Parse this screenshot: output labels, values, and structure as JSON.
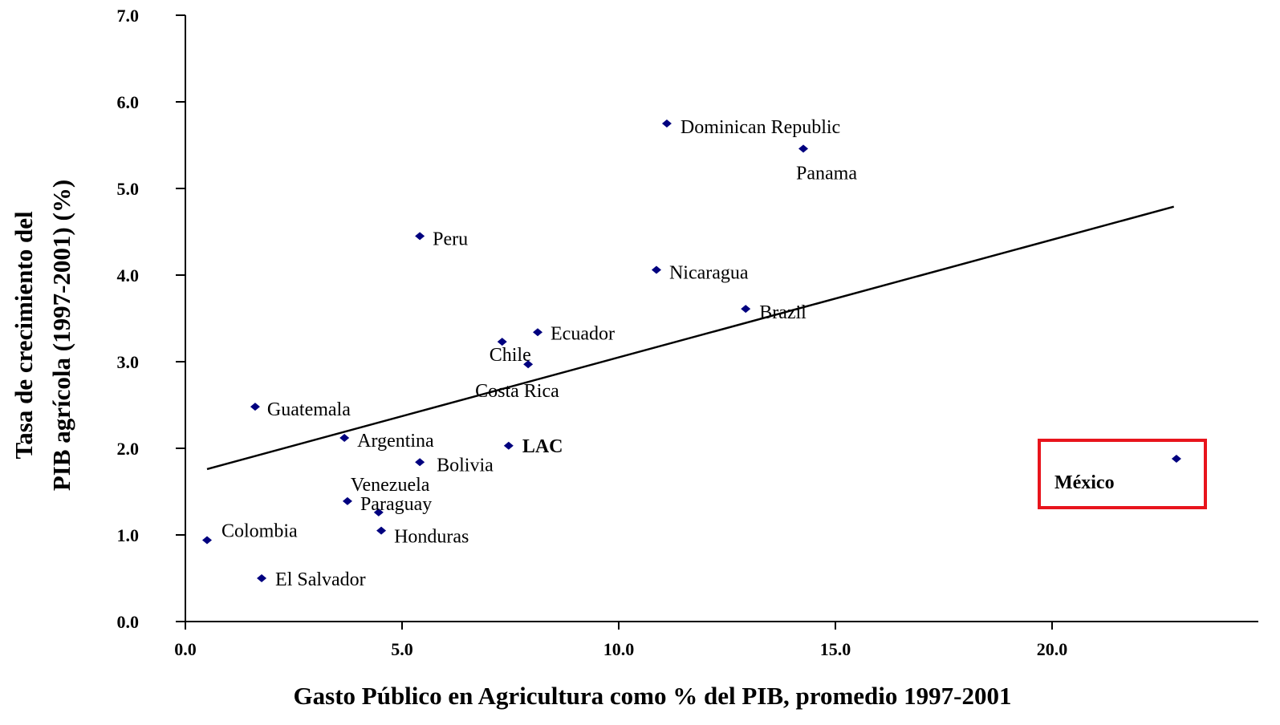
{
  "chart_data": {
    "type": "scatter",
    "xlabel": "Gasto Público en Agricultura como % del PIB, promedio 1997-2001",
    "ylabel": [
      "Tasa de crecimiento del",
      "PIB agrícola (1997-2001) (%)"
    ],
    "labels": [
      "Dominican Republic",
      "Panama",
      "Peru",
      "Nicaragua",
      "Brazil",
      "Ecuador",
      "Chile",
      "Costa Rica",
      "Guatemala",
      "Argentina",
      "LAC",
      "Bolivia",
      "Venezuela",
      "Paraguay",
      "Honduras",
      "Colombia",
      "El Salvador",
      "México"
    ],
    "x": [
      11.11,
      14.26,
      5.41,
      10.87,
      12.93,
      8.13,
      7.31,
      7.91,
      1.61,
      3.67,
      7.46,
      5.41,
      4.46,
      3.74,
      4.52,
      0.5,
      1.76,
      22.87
    ],
    "y": [
      5.75,
      5.46,
      4.45,
      4.06,
      3.61,
      3.34,
      3.23,
      2.97,
      2.48,
      2.12,
      2.03,
      1.84,
      1.26,
      1.39,
      1.05,
      0.94,
      0.5,
      1.88
    ],
    "color": "#00007f",
    "trendline": {
      "x": [
        0.5,
        22.81
      ],
      "y": [
        1.76,
        4.79
      ],
      "color": "#000000"
    },
    "xlim": [
      0,
      24.76
    ],
    "ylim": [
      0,
      7
    ],
    "xticks": [
      {
        "value": 0,
        "label": "0.0"
      },
      {
        "value": 5,
        "label": "5.0"
      },
      {
        "value": 10,
        "label": "10.0"
      },
      {
        "value": 15,
        "label": "15.0"
      },
      {
        "value": 20,
        "label": "20.0"
      }
    ],
    "yticks": [
      {
        "value": 0,
        "label": "0.0"
      },
      {
        "value": 1,
        "label": "1.0"
      },
      {
        "value": 2,
        "label": "2.0"
      },
      {
        "value": 3,
        "label": "3.0"
      },
      {
        "value": 4,
        "label": "4.0"
      },
      {
        "value": 5,
        "label": "5.0"
      },
      {
        "value": 6,
        "label": "6.0"
      },
      {
        "value": 7,
        "label": "7.0"
      }
    ],
    "grid": false
  }
}
